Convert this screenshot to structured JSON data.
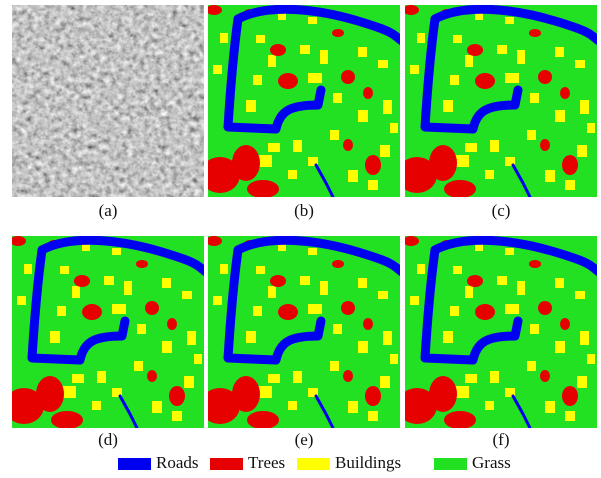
{
  "panels": [
    {
      "label": "(a)"
    },
    {
      "label": "(b)"
    },
    {
      "label": "(c)"
    },
    {
      "label": "(d)"
    },
    {
      "label": "(e)"
    },
    {
      "label": "(f)"
    }
  ],
  "legend": [
    {
      "name": "Roads",
      "color": "#0000f0"
    },
    {
      "name": "Trees",
      "color": "#e60000"
    },
    {
      "name": "Buildings",
      "color": "#ffff00"
    },
    {
      "name": "Grass",
      "color": "#22e022"
    }
  ]
}
